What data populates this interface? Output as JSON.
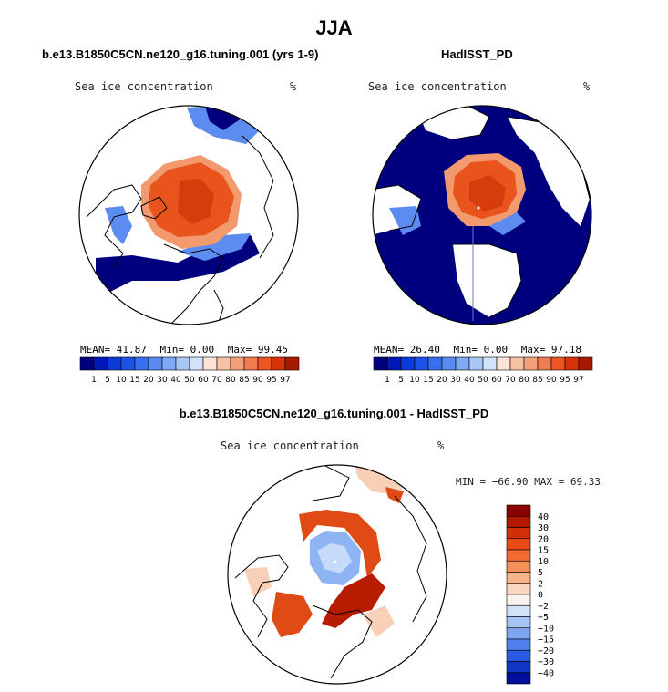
{
  "figure": {
    "title": "JJA"
  },
  "panels": [
    {
      "title": "b.e13.B1850C5CN.ne120_g16.tuning.001 (yrs 1-9)",
      "variable": "Sea ice concentration",
      "units": "%",
      "stats": {
        "mean_label": "MEAN=",
        "mean": "41.87",
        "min_label": "Min=",
        "min": "0.00",
        "max_label": "Max=",
        "max": "99.45"
      }
    },
    {
      "title": "HadISST_PD",
      "variable": "Sea ice concentration",
      "units": "%",
      "stats": {
        "mean_label": "MEAN=",
        "mean": "26.40",
        "min_label": "Min=",
        "min": "0.00",
        "max_label": "Max=",
        "max": "97.18"
      }
    },
    {
      "title": "b.e13.B1850C5CN.ne120_g16.tuning.001 - HadISST_PD",
      "variable": "Sea ice concentration",
      "units": "%",
      "stats_text": "MIN = −66.90 MAX =  69.33"
    }
  ],
  "colorbar_abs": {
    "levels": [
      "1",
      "5",
      "10",
      "15",
      "20",
      "30",
      "40",
      "50",
      "60",
      "70",
      "80",
      "85",
      "90",
      "95",
      "97"
    ],
    "colors": [
      "#00007f",
      "#0018b8",
      "#0a3ad8",
      "#1c52e8",
      "#3a6ef0",
      "#5a8af2",
      "#7ea8f4",
      "#a8c6f6",
      "#d2e2f8",
      "#fbe3d6",
      "#f8c2a6",
      "#f5a07a",
      "#f27a4e",
      "#ee5424",
      "#d83208",
      "#a81a00"
    ]
  },
  "colorbar_diff": {
    "levels": [
      "40",
      "30",
      "20",
      "15",
      "10",
      "5",
      "2",
      "0",
      "−2",
      "−5",
      "−10",
      "−15",
      "−20",
      "−30",
      "−40"
    ],
    "colors": [
      "#8c0000",
      "#b41800",
      "#d42e06",
      "#ec4a18",
      "#f26a34",
      "#f5905a",
      "#f7b48a",
      "#f9d6bf",
      "#faf2ec",
      "#d4e2f8",
      "#a6c4f4",
      "#7ea6f0",
      "#5080ea",
      "#2a5ae2",
      "#1036c8",
      "#00109a"
    ]
  },
  "map_colors": {
    "high_ice": "#e8541c",
    "high_ice_dark": "#d63c0c",
    "mid_ice": "#f29a6e",
    "low_ice": "#5c8cf0",
    "zero_ice": "#00007f",
    "diff_pos": "#e04a14",
    "diff_pos_dark": "#b81c00",
    "diff_pos_light": "#f8d0b8",
    "diff_neg": "#8eb4f4",
    "diff_neg_light": "#c6dafa",
    "land": "#ffffff",
    "coast": "#000000"
  }
}
